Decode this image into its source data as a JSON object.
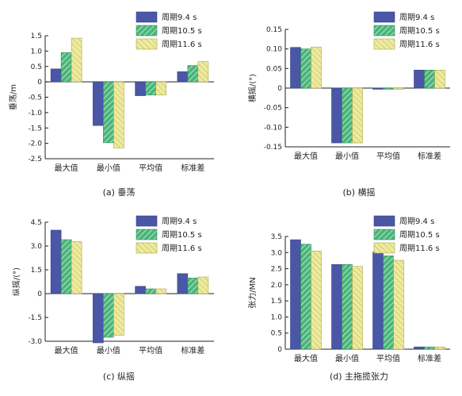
{
  "legend_labels": [
    "周期9.4 s",
    "周期10.5 s",
    "周期11.6 s"
  ],
  "series_colors": [
    "#4a56a6",
    "#49b57a",
    "#e6e48a"
  ],
  "chart_data": [
    {
      "type": "bar",
      "caption": "(a) 垂荡",
      "ylabel": "垂荡/m",
      "categories": [
        "最大值",
        "最小值",
        "平均值",
        "标准差"
      ],
      "ylim": [
        -2.5,
        1.5
      ],
      "yticks": [
        1.5,
        1.0,
        0.5,
        0,
        -0.5,
        -1.0,
        -1.5,
        -2.0,
        -2.5
      ],
      "ytick_labels": [
        "1.5",
        "1.0",
        "0.5",
        "0",
        "-0.5",
        "-1.0",
        "-1.5",
        "-2.0",
        "-2.5"
      ],
      "series": [
        {
          "name": "周期9.4 s",
          "values": [
            0.42,
            -1.42,
            -0.45,
            0.33
          ]
        },
        {
          "name": "周期10.5 s",
          "values": [
            0.95,
            -1.98,
            -0.43,
            0.53
          ]
        },
        {
          "name": "周期11.6 s",
          "values": [
            1.42,
            -2.15,
            -0.43,
            0.66
          ]
        }
      ]
    },
    {
      "type": "bar",
      "caption": "(b) 横摇",
      "ylabel": "横摇/(°)",
      "categories": [
        "最大值",
        "最小值",
        "平均值",
        "标准差"
      ],
      "ylim": [
        -0.15,
        0.15
      ],
      "yticks": [
        0.15,
        0.1,
        0.05,
        0,
        -0.05,
        -0.1,
        -0.15
      ],
      "ytick_labels": [
        "0.15",
        "0.10",
        "0.05",
        "0",
        "-0.05",
        "-0.10",
        "-0.15"
      ],
      "series": [
        {
          "name": "周期9.4 s",
          "values": [
            0.104,
            -0.14,
            -0.003,
            0.046
          ]
        },
        {
          "name": "周期10.5 s",
          "values": [
            0.1,
            -0.14,
            -0.003,
            0.046
          ]
        },
        {
          "name": "周期11.6 s",
          "values": [
            0.105,
            -0.14,
            -0.003,
            0.046
          ]
        }
      ]
    },
    {
      "type": "bar",
      "caption": "(c) 纵摇",
      "ylabel": "纵摇/(°)",
      "categories": [
        "最大值",
        "最小值",
        "平均值",
        "标准差"
      ],
      "ylim": [
        -3.0,
        4.5
      ],
      "yticks": [
        4.5,
        3.0,
        1.5,
        0,
        -1.5,
        -3.0
      ],
      "ytick_labels": [
        "4.5",
        "3.0",
        "1.5",
        "0",
        "-1.5",
        "-3.0"
      ],
      "series": [
        {
          "name": "周期9.4 s",
          "values": [
            4.0,
            -3.1,
            0.46,
            1.26
          ]
        },
        {
          "name": "周期10.5 s",
          "values": [
            3.4,
            -2.75,
            0.3,
            0.98
          ]
        },
        {
          "name": "周期11.6 s",
          "values": [
            3.28,
            -2.62,
            0.3,
            1.05
          ]
        }
      ]
    },
    {
      "type": "bar",
      "caption": "(d) 主拖揽张力",
      "ylabel": "张力/MN",
      "categories": [
        "最大值",
        "最小值",
        "平均值",
        "标准差"
      ],
      "ylim": [
        0,
        3.5
      ],
      "yticks": [
        3.5,
        3.0,
        2.5,
        2.0,
        1.5,
        1.0,
        0.5,
        0
      ],
      "ytick_labels": [
        "3.5",
        "3.0",
        "2.5",
        "2.0",
        "1.5",
        "1.0",
        "0.5",
        "0"
      ],
      "series": [
        {
          "name": "周期9.4 s",
          "values": [
            3.4,
            2.63,
            3.02,
            0.07
          ]
        },
        {
          "name": "周期10.5 s",
          "values": [
            3.26,
            2.63,
            2.9,
            0.07
          ]
        },
        {
          "name": "周期11.6 s",
          "values": [
            3.05,
            2.57,
            2.76,
            0.07
          ]
        }
      ]
    }
  ]
}
